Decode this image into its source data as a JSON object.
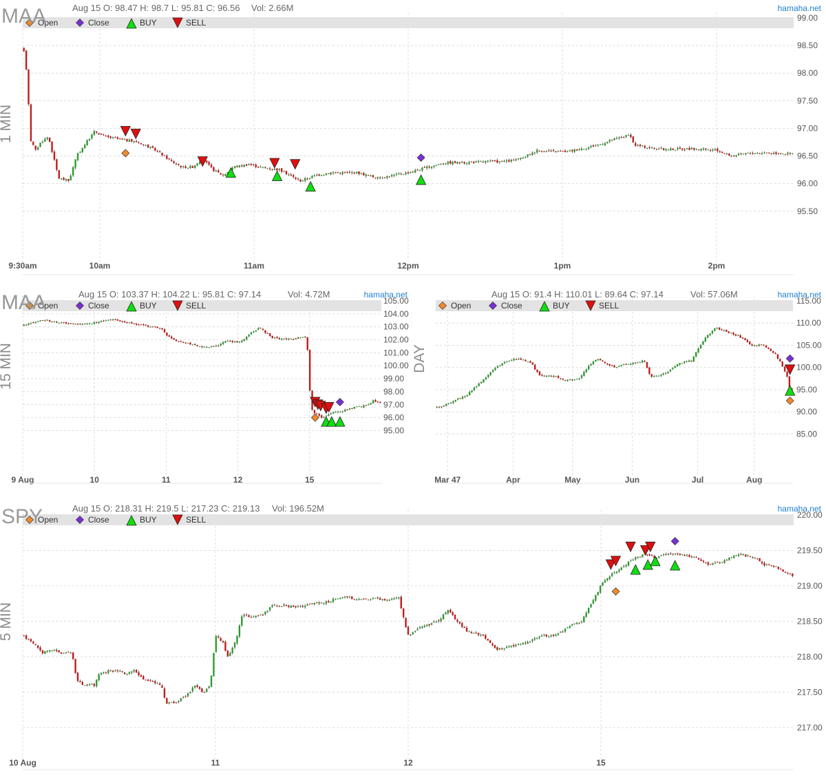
{
  "brand": "hamaha.net",
  "legend": {
    "open": "Open",
    "close": "Close",
    "buy": "BUY",
    "sell": "SELL",
    "colors": {
      "open": "#f0892b",
      "close": "#7a2fd6",
      "buy": "#11dd11",
      "sell": "#dd0f0f"
    }
  },
  "colors": {
    "bull": "#2e9a2e",
    "bear": "#c11b1b",
    "text": "#555555",
    "brand": "#1f7fcf",
    "legend_bar": "#e3e3e3"
  },
  "chart_data": [
    {
      "type": "candlestick",
      "symbol": "MAA",
      "timeframe": "1 MIN",
      "info": "Aug 15 O: 98.47 H: 98.7 L: 95.81 C: 96.56",
      "volume": "Vol: 2.66M",
      "ylim": [
        94.6,
        99.0
      ],
      "yticks": [
        "99.00",
        "98.50",
        "98.00",
        "97.50",
        "97.00",
        "96.50",
        "96.00",
        "95.50"
      ],
      "xticks": [
        "9:30am",
        "10am",
        "11am",
        "12pm",
        "1pm",
        "2pm"
      ],
      "x_range": [
        0,
        300
      ],
      "tick_positions": [
        0,
        30,
        90,
        150,
        210,
        270
      ],
      "path": [
        [
          0,
          98.45
        ],
        [
          1,
          98.3
        ],
        [
          2,
          97.7
        ],
        [
          3,
          96.8
        ],
        [
          5,
          96.6
        ],
        [
          7,
          96.75
        ],
        [
          10,
          96.85
        ],
        [
          14,
          96.1
        ],
        [
          18,
          96.05
        ],
        [
          21,
          96.5
        ],
        [
          24,
          96.7
        ],
        [
          28,
          96.95
        ],
        [
          32,
          96.85
        ],
        [
          38,
          96.8
        ],
        [
          45,
          96.75
        ],
        [
          52,
          96.6
        ],
        [
          58,
          96.4
        ],
        [
          62,
          96.3
        ],
        [
          66,
          96.3
        ],
        [
          70,
          96.45
        ],
        [
          74,
          96.25
        ],
        [
          78,
          96.15
        ],
        [
          82,
          96.3
        ],
        [
          88,
          96.35
        ],
        [
          92,
          96.3
        ],
        [
          100,
          96.25
        ],
        [
          108,
          96.05
        ],
        [
          114,
          96.15
        ],
        [
          120,
          96.2
        ],
        [
          130,
          96.2
        ],
        [
          138,
          96.1
        ],
        [
          144,
          96.15
        ],
        [
          150,
          96.2
        ],
        [
          158,
          96.3
        ],
        [
          164,
          96.38
        ],
        [
          172,
          96.38
        ],
        [
          180,
          96.4
        ],
        [
          188,
          96.4
        ],
        [
          194,
          96.45
        ],
        [
          200,
          96.6
        ],
        [
          206,
          96.58
        ],
        [
          212,
          96.58
        ],
        [
          218,
          96.64
        ],
        [
          224,
          96.7
        ],
        [
          230,
          96.8
        ],
        [
          236,
          96.88
        ],
        [
          238,
          96.7
        ],
        [
          244,
          96.65
        ],
        [
          250,
          96.62
        ],
        [
          260,
          96.63
        ],
        [
          270,
          96.6
        ],
        [
          276,
          96.5
        ],
        [
          282,
          96.55
        ],
        [
          290,
          96.56
        ],
        [
          300,
          96.54
        ]
      ],
      "markers": [
        {
          "type": "sell",
          "t": 40,
          "price": 96.95
        },
        {
          "type": "sell",
          "t": 44,
          "price": 96.9
        },
        {
          "type": "open",
          "t": 40,
          "price": 96.55
        },
        {
          "type": "sell",
          "t": 70,
          "price": 96.4
        },
        {
          "type": "buy",
          "t": 81,
          "price": 96.2
        },
        {
          "type": "sell",
          "t": 98,
          "price": 96.37
        },
        {
          "type": "buy",
          "t": 99,
          "price": 96.14
        },
        {
          "type": "sell",
          "t": 106,
          "price": 96.35
        },
        {
          "type": "buy",
          "t": 112,
          "price": 95.95
        },
        {
          "type": "close",
          "t": 155,
          "price": 96.47
        },
        {
          "type": "buy",
          "t": 155,
          "price": 96.07
        }
      ]
    },
    {
      "type": "candlestick",
      "symbol": "MAA",
      "timeframe": "15 MIN",
      "info": "Aug 15 O: 103.37 H: 104.22 L: 95.81 C: 97.14",
      "volume": "Vol: 4.72M",
      "ylim": [
        92.0,
        105.0
      ],
      "yticks": [
        "105.00",
        "104.00",
        "103.00",
        "102.00",
        "101.00",
        "100.00",
        "99.00",
        "98.00",
        "97.00",
        "96.00",
        "95.00"
      ],
      "xticks": [
        "9 Aug",
        "10",
        "11",
        "12",
        "15"
      ],
      "x_range": [
        0,
        130
      ],
      "tick_positions": [
        0,
        26,
        52,
        78,
        104
      ],
      "path": [
        [
          0,
          103.1
        ],
        [
          3,
          103.3
        ],
        [
          8,
          103.5
        ],
        [
          14,
          103.3
        ],
        [
          20,
          103.2
        ],
        [
          26,
          103.3
        ],
        [
          32,
          103.6
        ],
        [
          38,
          103.3
        ],
        [
          44,
          103.1
        ],
        [
          50,
          102.9
        ],
        [
          52,
          102.4
        ],
        [
          55,
          102.0
        ],
        [
          60,
          101.7
        ],
        [
          66,
          101.4
        ],
        [
          70,
          101.5
        ],
        [
          74,
          101.9
        ],
        [
          78,
          101.8
        ],
        [
          80,
          102.0
        ],
        [
          83,
          102.6
        ],
        [
          86,
          102.9
        ],
        [
          90,
          102.2
        ],
        [
          96,
          102.0
        ],
        [
          103,
          102.2
        ],
        [
          104,
          98.2
        ],
        [
          105,
          96.5
        ],
        [
          108,
          96.0
        ],
        [
          112,
          96.4
        ],
        [
          116,
          96.5
        ],
        [
          120,
          96.8
        ],
        [
          124,
          96.9
        ],
        [
          127,
          97.3
        ],
        [
          130,
          97.1
        ]
      ],
      "missing": [
        [
          103.5,
          103.9
        ]
      ],
      "markers": [
        {
          "type": "sell",
          "t": 106,
          "price": 97.2
        },
        {
          "type": "sell",
          "t": 107,
          "price": 97.0
        },
        {
          "type": "sell",
          "t": 108,
          "price": 96.9
        },
        {
          "type": "sell",
          "t": 110,
          "price": 96.7
        },
        {
          "type": "sell",
          "t": 111,
          "price": 96.8
        },
        {
          "type": "buy",
          "t": 110,
          "price": 95.7
        },
        {
          "type": "buy",
          "t": 112,
          "price": 95.7
        },
        {
          "type": "buy",
          "t": 115,
          "price": 95.7
        },
        {
          "type": "open",
          "t": 106,
          "price": 96.0
        },
        {
          "type": "close",
          "t": 115,
          "price": 97.2
        }
      ]
    },
    {
      "type": "candlestick",
      "symbol": "MAA",
      "timeframe": "DAY",
      "info": "Aug 15 O: 91.4 H: 110.01 L: 89.64 C: 97.14",
      "volume": "Vol: 57.06M",
      "ylim": [
        77.0,
        115.0
      ],
      "yticks": [
        "115.00",
        "110.00",
        "105.00",
        "100.00",
        "95.00",
        "90.00",
        "85.00"
      ],
      "xticks": [
        "Mar 47",
        "Apr",
        "May",
        "Jun",
        "Jul",
        "Aug"
      ],
      "x_range": [
        0,
        120
      ],
      "tick_positions": [
        4,
        26,
        46,
        66,
        88,
        107
      ],
      "path": [
        [
          0,
          91
        ],
        [
          3,
          91.5
        ],
        [
          6,
          92.5
        ],
        [
          10,
          93.5
        ],
        [
          14,
          96
        ],
        [
          17,
          98
        ],
        [
          20,
          100
        ],
        [
          24,
          101.5
        ],
        [
          28,
          102
        ],
        [
          32,
          101
        ],
        [
          35,
          98
        ],
        [
          40,
          98
        ],
        [
          44,
          97
        ],
        [
          48,
          97.5
        ],
        [
          51,
          100
        ],
        [
          54,
          102
        ],
        [
          57,
          101
        ],
        [
          60,
          100
        ],
        [
          63,
          100.5
        ],
        [
          67,
          101
        ],
        [
          70,
          101.5
        ],
        [
          72,
          98
        ],
        [
          74,
          98
        ],
        [
          78,
          99
        ],
        [
          82,
          101
        ],
        [
          86,
          101.5
        ],
        [
          88,
          104
        ],
        [
          91,
          107
        ],
        [
          94,
          109
        ],
        [
          98,
          108
        ],
        [
          102,
          107
        ],
        [
          106,
          105
        ],
        [
          110,
          105
        ],
        [
          114,
          103
        ],
        [
          116,
          101
        ],
        [
          118,
          98
        ],
        [
          119,
          95
        ],
        [
          120,
          93
        ]
      ],
      "markers": [
        {
          "type": "close",
          "t": 119,
          "price": 102
        },
        {
          "type": "sell",
          "t": 119,
          "price": 99.5
        },
        {
          "type": "buy",
          "t": 119,
          "price": 94.8
        },
        {
          "type": "open",
          "t": 119,
          "price": 92.5
        }
      ]
    },
    {
      "type": "candlestick",
      "symbol": "SPY",
      "timeframe": "5 MIN",
      "info": "Aug 15 O: 218.31 H: 219.5 L: 217.23 C: 219.13",
      "volume": "Vol: 196.52M",
      "ylim": [
        216.6,
        220.0
      ],
      "yticks": [
        "220.00",
        "219.50",
        "219.00",
        "218.50",
        "218.00",
        "217.50",
        "217.00"
      ],
      "xticks": [
        "10 Aug",
        "11",
        "12",
        "15"
      ],
      "x_range": [
        0,
        312
      ],
      "tick_positions": [
        0,
        78,
        156,
        234
      ],
      "path": [
        [
          0,
          218.3
        ],
        [
          4,
          218.2
        ],
        [
          8,
          218.05
        ],
        [
          12,
          218.1
        ],
        [
          16,
          218.05
        ],
        [
          20,
          218.05
        ],
        [
          22,
          217.65
        ],
        [
          25,
          217.6
        ],
        [
          29,
          217.6
        ],
        [
          31,
          217.75
        ],
        [
          35,
          217.8
        ],
        [
          39,
          217.8
        ],
        [
          42,
          217.75
        ],
        [
          45,
          217.8
        ],
        [
          48,
          217.7
        ],
        [
          52,
          217.65
        ],
        [
          56,
          217.6
        ],
        [
          58,
          217.35
        ],
        [
          62,
          217.35
        ],
        [
          66,
          217.45
        ],
        [
          70,
          217.6
        ],
        [
          73,
          217.5
        ],
        [
          76,
          217.6
        ],
        [
          78,
          218.3
        ],
        [
          81,
          218.2
        ],
        [
          83,
          218.0
        ],
        [
          86,
          218.2
        ],
        [
          89,
          218.6
        ],
        [
          93,
          218.55
        ],
        [
          97,
          218.6
        ],
        [
          101,
          218.72
        ],
        [
          106,
          218.72
        ],
        [
          112,
          218.7
        ],
        [
          118,
          218.75
        ],
        [
          124,
          218.78
        ],
        [
          130,
          218.85
        ],
        [
          136,
          218.8
        ],
        [
          142,
          218.82
        ],
        [
          148,
          218.8
        ],
        [
          152,
          218.85
        ],
        [
          156,
          218.3
        ],
        [
          160,
          218.4
        ],
        [
          164,
          218.45
        ],
        [
          168,
          218.5
        ],
        [
          172,
          218.65
        ],
        [
          176,
          218.5
        ],
        [
          180,
          218.35
        ],
        [
          186,
          218.3
        ],
        [
          192,
          218.1
        ],
        [
          198,
          218.15
        ],
        [
          204,
          218.2
        ],
        [
          210,
          218.3
        ],
        [
          216,
          218.3
        ],
        [
          222,
          218.45
        ],
        [
          226,
          218.5
        ],
        [
          234,
          219.0
        ],
        [
          236,
          219.1
        ],
        [
          240,
          219.2
        ],
        [
          244,
          219.3
        ],
        [
          248,
          219.4
        ],
        [
          252,
          219.45
        ],
        [
          256,
          219.4
        ],
        [
          260,
          219.45
        ],
        [
          266,
          219.45
        ],
        [
          272,
          219.4
        ],
        [
          278,
          219.3
        ],
        [
          284,
          219.35
        ],
        [
          290,
          219.45
        ],
        [
          296,
          219.4
        ],
        [
          300,
          219.3
        ],
        [
          306,
          219.25
        ],
        [
          312,
          219.13
        ]
      ],
      "markers": [
        {
          "type": "sell",
          "t": 238,
          "price": 219.3
        },
        {
          "type": "sell",
          "t": 240,
          "price": 219.35
        },
        {
          "type": "open",
          "t": 240,
          "price": 218.92
        },
        {
          "type": "sell",
          "t": 246,
          "price": 219.55
        },
        {
          "type": "buy",
          "t": 248,
          "price": 219.23
        },
        {
          "type": "sell",
          "t": 252,
          "price": 219.5
        },
        {
          "type": "sell",
          "t": 254,
          "price": 219.55
        },
        {
          "type": "buy",
          "t": 253,
          "price": 219.3
        },
        {
          "type": "buy",
          "t": 256,
          "price": 219.35
        },
        {
          "type": "close",
          "t": 264,
          "price": 219.63
        },
        {
          "type": "buy",
          "t": 264,
          "price": 219.29
        }
      ]
    }
  ]
}
